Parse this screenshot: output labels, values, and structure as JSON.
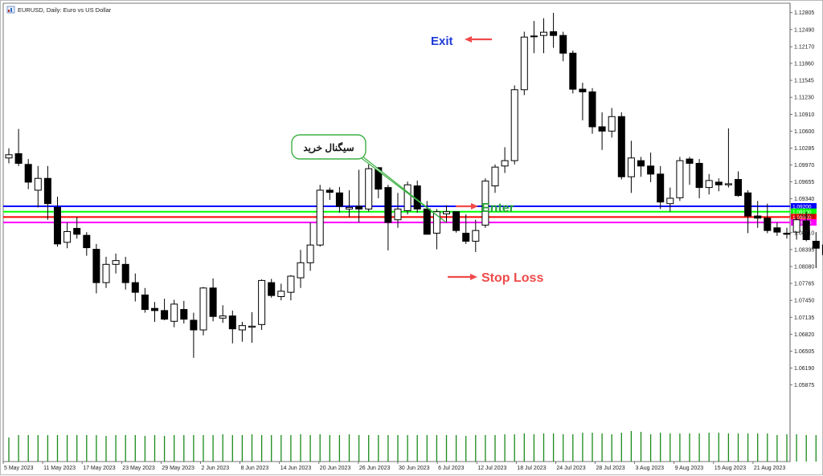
{
  "window": {
    "title": "EURUSD, Daily:  Euro vs US Dollar",
    "icon": "chart-window-icon"
  },
  "chart_data": {
    "type": "candlestick",
    "symbol": "EURUSD",
    "timeframe": "Daily",
    "description": "Euro vs US Dollar",
    "ylim": [
      1.0445,
      1.1298
    ],
    "y_ticks": [
      "1.12805",
      "1.12490",
      "1.12170",
      "1.11860",
      "1.11545",
      "1.11230",
      "1.10910",
      "1.10600",
      "1.10285",
      "1.09970",
      "1.09655",
      "1.09340",
      "1.09020",
      "1.08710",
      "1.08395",
      "1.08080",
      "1.07765",
      "1.07450",
      "1.07135",
      "1.06820",
      "1.06505",
      "1.06190",
      "1.05875"
    ],
    "x_labels": [
      "5 May 2023",
      "11 May 2023",
      "17 May 2023",
      "23 May 2023",
      "29 May 2023",
      "2 Jun 2023",
      "8 Jun 2023",
      "14 Jun 2023",
      "20 Jun 2023",
      "26 Jun 2023",
      "30 Jun 2023",
      "6 Jul 2023",
      "12 Jul 2023",
      "18 Jul 2023",
      "24 Jul 2023",
      "28 Jul 2023",
      "3 Aug 2023",
      "9 Aug 2023",
      "15 Aug 2023",
      "21 Aug 2023"
    ],
    "candles": [
      {
        "o": 1.101,
        "h": 1.1028,
        "l": 1.1,
        "c": 1.1016
      },
      {
        "o": 1.1018,
        "h": 1.1064,
        "l": 1.0995,
        "c": 1.1
      },
      {
        "o": 1.0998,
        "h": 1.1008,
        "l": 1.0952,
        "c": 1.0965
      },
      {
        "o": 1.095,
        "h": 1.0995,
        "l": 1.0918,
        "c": 1.0972
      },
      {
        "o": 1.0972,
        "h": 1.0995,
        "l": 1.0895,
        "c": 1.0925
      },
      {
        "o": 1.0918,
        "h": 1.0938,
        "l": 1.0845,
        "c": 1.085
      },
      {
        "o": 1.0853,
        "h": 1.089,
        "l": 1.0842,
        "c": 1.0873
      },
      {
        "o": 1.0879,
        "h": 1.09,
        "l": 1.086,
        "c": 1.0868
      },
      {
        "o": 1.0866,
        "h": 1.0872,
        "l": 1.0828,
        "c": 1.0843
      },
      {
        "o": 1.084,
        "h": 1.085,
        "l": 1.0758,
        "c": 1.0778
      },
      {
        "o": 1.0778,
        "h": 1.0826,
        "l": 1.0768,
        "c": 1.0812
      },
      {
        "o": 1.0812,
        "h": 1.0832,
        "l": 1.0795,
        "c": 1.0819
      },
      {
        "o": 1.0812,
        "h": 1.0826,
        "l": 1.0765,
        "c": 1.0778
      },
      {
        "o": 1.0778,
        "h": 1.0795,
        "l": 1.0743,
        "c": 1.076
      },
      {
        "o": 1.0755,
        "h": 1.0768,
        "l": 1.0722,
        "c": 1.0728
      },
      {
        "o": 1.073,
        "h": 1.0742,
        "l": 1.0705,
        "c": 1.0726
      },
      {
        "o": 1.0726,
        "h": 1.0748,
        "l": 1.0708,
        "c": 1.071
      },
      {
        "o": 1.0706,
        "h": 1.0746,
        "l": 1.0695,
        "c": 1.0738
      },
      {
        "o": 1.0728,
        "h": 1.0744,
        "l": 1.0702,
        "c": 1.071
      },
      {
        "o": 1.0708,
        "h": 1.0722,
        "l": 1.0638,
        "c": 1.069
      },
      {
        "o": 1.069,
        "h": 1.077,
        "l": 1.068,
        "c": 1.0768
      },
      {
        "o": 1.0768,
        "h": 1.0786,
        "l": 1.0706,
        "c": 1.0715
      },
      {
        "o": 1.0712,
        "h": 1.0736,
        "l": 1.0703,
        "c": 1.0716
      },
      {
        "o": 1.0716,
        "h": 1.0726,
        "l": 1.0665,
        "c": 1.0692
      },
      {
        "o": 1.069,
        "h": 1.0705,
        "l": 1.0668,
        "c": 1.0698
      },
      {
        "o": 1.0695,
        "h": 1.0723,
        "l": 1.0666,
        "c": 1.0697
      },
      {
        "o": 1.07,
        "h": 1.0784,
        "l": 1.069,
        "c": 1.0782
      },
      {
        "o": 1.0778,
        "h": 1.0785,
        "l": 1.075,
        "c": 1.0754
      },
      {
        "o": 1.0752,
        "h": 1.0776,
        "l": 1.0745,
        "c": 1.0762
      },
      {
        "o": 1.076,
        "h": 1.0792,
        "l": 1.0745,
        "c": 1.079
      },
      {
        "o": 1.0787,
        "h": 1.0839,
        "l": 1.0768,
        "c": 1.0815
      },
      {
        "o": 1.0815,
        "h": 1.089,
        "l": 1.08,
        "c": 1.0848
      },
      {
        "o": 1.0848,
        "h": 1.096,
        "l": 1.0845,
        "c": 1.095
      },
      {
        "o": 1.095,
        "h": 1.0955,
        "l": 1.0932,
        "c": 1.0946
      },
      {
        "o": 1.0945,
        "h": 1.0956,
        "l": 1.0908,
        "c": 1.092
      },
      {
        "o": 1.0915,
        "h": 1.095,
        "l": 1.09,
        "c": 1.0918
      },
      {
        "o": 1.092,
        "h": 1.0988,
        "l": 1.089,
        "c": 1.0915
      },
      {
        "o": 1.0915,
        "h": 1.0998,
        "l": 1.091,
        "c": 1.099
      },
      {
        "o": 1.0992,
        "h": 1.0992,
        "l": 1.0935,
        "c": 1.0952
      },
      {
        "o": 1.0955,
        "h": 1.096,
        "l": 1.0838,
        "c": 1.089
      },
      {
        "o": 1.0895,
        "h": 1.0945,
        "l": 1.088,
        "c": 1.0915
      },
      {
        "o": 1.0912,
        "h": 1.0966,
        "l": 1.0905,
        "c": 1.096
      },
      {
        "o": 1.0958,
        "h": 1.0968,
        "l": 1.0908,
        "c": 1.0915
      },
      {
        "o": 1.0915,
        "h": 1.093,
        "l": 1.087,
        "c": 1.0868
      },
      {
        "o": 1.087,
        "h": 1.0915,
        "l": 1.084,
        "c": 1.091
      },
      {
        "o": 1.0906,
        "h": 1.0922,
        "l": 1.089,
        "c": 1.091
      },
      {
        "o": 1.091,
        "h": 1.091,
        "l": 1.0871,
        "c": 1.0875
      },
      {
        "o": 1.087,
        "h": 1.0905,
        "l": 1.085,
        "c": 1.0855
      },
      {
        "o": 1.0855,
        "h": 1.0895,
        "l": 1.0835,
        "c": 1.0875
      },
      {
        "o": 1.0885,
        "h": 1.0972,
        "l": 1.088,
        "c": 1.0967
      },
      {
        "o": 1.0958,
        "h": 1.0998,
        "l": 1.0945,
        "c": 1.0993
      },
      {
        "o": 1.0995,
        "h": 1.103,
        "l": 1.0982,
        "c": 1.1005
      },
      {
        "o": 1.1005,
        "h": 1.1145,
        "l": 1.0998,
        "c": 1.1137
      },
      {
        "o": 1.1137,
        "h": 1.1245,
        "l": 1.1127,
        "c": 1.1235
      },
      {
        "o": 1.1236,
        "h": 1.1265,
        "l": 1.1205,
        "c": 1.1237
      },
      {
        "o": 1.1238,
        "h": 1.127,
        "l": 1.1205,
        "c": 1.1244
      },
      {
        "o": 1.1245,
        "h": 1.128,
        "l": 1.1215,
        "c": 1.1238
      },
      {
        "o": 1.1238,
        "h": 1.1245,
        "l": 1.119,
        "c": 1.1205
      },
      {
        "o": 1.1205,
        "h": 1.121,
        "l": 1.113,
        "c": 1.1138
      },
      {
        "o": 1.1138,
        "h": 1.115,
        "l": 1.108,
        "c": 1.1133
      },
      {
        "o": 1.1133,
        "h": 1.114,
        "l": 1.1055,
        "c": 1.1068
      },
      {
        "o": 1.1068,
        "h": 1.1095,
        "l": 1.1025,
        "c": 1.106
      },
      {
        "o": 1.106,
        "h": 1.1103,
        "l": 1.1048,
        "c": 1.1087
      },
      {
        "o": 1.1087,
        "h": 1.1095,
        "l": 1.097,
        "c": 1.0975
      },
      {
        "o": 1.0975,
        "h": 1.1042,
        "l": 1.0945,
        "c": 1.101
      },
      {
        "o": 1.1005,
        "h": 1.1012,
        "l": 1.0975,
        "c": 1.0995
      },
      {
        "o": 1.0995,
        "h": 1.102,
        "l": 1.0965,
        "c": 1.098
      },
      {
        "o": 1.098,
        "h": 1.0995,
        "l": 1.0915,
        "c": 1.0928
      },
      {
        "o": 1.0925,
        "h": 1.0955,
        "l": 1.091,
        "c": 1.0935
      },
      {
        "o": 1.0936,
        "h": 1.1012,
        "l": 1.093,
        "c": 1.1005
      },
      {
        "o": 1.1008,
        "h": 1.1012,
        "l": 1.096,
        "c": 1.1
      },
      {
        "o": 1.1,
        "h": 1.1008,
        "l": 1.0935,
        "c": 1.0955
      },
      {
        "o": 1.0955,
        "h": 1.098,
        "l": 1.0942,
        "c": 1.0968
      },
      {
        "o": 1.0965,
        "h": 1.0972,
        "l": 1.0948,
        "c": 1.096
      },
      {
        "o": 1.096,
        "h": 1.1065,
        "l": 1.0955,
        "c": 1.0962
      },
      {
        "o": 1.097,
        "h": 1.0985,
        "l": 1.0938,
        "c": 1.094
      },
      {
        "o": 1.0945,
        "h": 1.095,
        "l": 1.087,
        "c": 1.0902
      },
      {
        "o": 1.0902,
        "h": 1.093,
        "l": 1.088,
        "c": 1.0898
      },
      {
        "o": 1.0898,
        "h": 1.0925,
        "l": 1.087,
        "c": 1.0875
      },
      {
        "o": 1.088,
        "h": 1.089,
        "l": 1.0865,
        "c": 1.0872
      },
      {
        "o": 1.087,
        "h": 1.088,
        "l": 1.086,
        "c": 1.0868
      },
      {
        "o": 1.0872,
        "h": 1.09,
        "l": 1.0858,
        "c": 1.0895
      },
      {
        "o": 1.0893,
        "h": 1.091,
        "l": 1.0855,
        "c": 1.0858
      },
      {
        "o": 1.0855,
        "h": 1.0872,
        "l": 1.0805,
        "c": 1.0842
      },
      {
        "o": 1.0848,
        "h": 1.086,
        "l": 1.0805,
        "c": 1.083
      }
    ],
    "volume": [
      30,
      33,
      33,
      33,
      33,
      33,
      33,
      33,
      33,
      33,
      32,
      33,
      33,
      33,
      32,
      33,
      32,
      33,
      33,
      33,
      33,
      33,
      34,
      33,
      33,
      34,
      33,
      33,
      33,
      33,
      34,
      33,
      34,
      33,
      33,
      34,
      33,
      33,
      33,
      33,
      33,
      33,
      33,
      33,
      33,
      33,
      33,
      32,
      33,
      33,
      33,
      34,
      34,
      35,
      34,
      35,
      35,
      34,
      34,
      36,
      36,
      35,
      34,
      36,
      38,
      37,
      34,
      36,
      35,
      35,
      35,
      35,
      36,
      36,
      35,
      35,
      35,
      35,
      35,
      33,
      34,
      34,
      33,
      33,
      34
    ],
    "levels": [
      {
        "price": 1.092,
        "label": "1.09200",
        "color": "#0000ff"
      },
      {
        "price": 1.091,
        "label": "1.09100",
        "color": "#00ff00"
      },
      {
        "price": 1.09,
        "label": "1.09000",
        "color": "#ff0000"
      },
      {
        "price": 1.089,
        "label": "1.08900",
        "color": "#ff00ff"
      }
    ]
  },
  "annotations": {
    "exit": {
      "text": "Exit",
      "color": "#1e3bd9",
      "arrow_color": "#f04a4a"
    },
    "enter": {
      "text": "Enter",
      "color": "#28a43a",
      "arrow_color": "#f04a4a"
    },
    "stop_loss": {
      "text": "Stop Loss",
      "color": "#f04a4a",
      "arrow_color": "#f04a4a"
    },
    "buy_signal": {
      "text": "سیگنال خرید",
      "border_color": "#3cb043"
    }
  },
  "colors": {
    "grid_border": "#555555",
    "axis_text": "#222222",
    "volume": "#1a8a1a"
  }
}
